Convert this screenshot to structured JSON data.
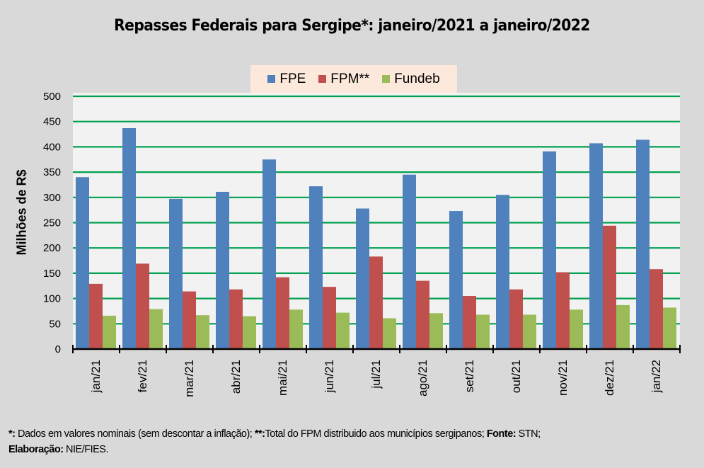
{
  "chart_data": {
    "type": "bar",
    "title": "Repasses Federais para Sergipe*: janeiro/2021 a janeiro/2022",
    "xlabel": "",
    "ylabel": "Milhões de R$",
    "ylim": [
      0,
      500
    ],
    "yticks": [
      0,
      50,
      100,
      150,
      200,
      250,
      300,
      350,
      400,
      450,
      500
    ],
    "grid": true,
    "legend_position": "top-center",
    "categories": [
      "jan/21",
      "fev/21",
      "mar/21",
      "abr/21",
      "mai/21",
      "jun/21",
      "jul/21",
      "ago/21",
      "set/21",
      "out/21",
      "nov/21",
      "dez/21",
      "jan/22"
    ],
    "series": [
      {
        "name": "FPE",
        "color": "#4f81bd",
        "values": [
          340,
          437,
          297,
          311,
          375,
          322,
          278,
          345,
          273,
          305,
          391,
          407,
          414
        ]
      },
      {
        "name": "FPM**",
        "color": "#c0504d",
        "values": [
          129,
          169,
          114,
          118,
          142,
          123,
          183,
          135,
          105,
          118,
          152,
          244,
          158
        ]
      },
      {
        "name": "Fundeb",
        "color": "#9bbb59",
        "values": [
          66,
          79,
          67,
          65,
          78,
          72,
          61,
          71,
          68,
          68,
          78,
          87,
          82
        ]
      }
    ]
  },
  "footnote": {
    "star_label": "*:",
    "star_text": " Dados em valores nominais (sem descontar a inflação); ",
    "dstar_label": "**:",
    "dstar_text": "Total  do FPM distribuido aos municípios sergipanos; ",
    "source_label": "Fonte:",
    "source_text": " STN;",
    "author_label": "Elaboração:",
    "author_text": " NIE/FIES."
  },
  "colors": {
    "background": "#d9d9d9",
    "plot_background": "#f2f2f2",
    "gridline": "#00a050",
    "legend_background": "#fce9dc"
  }
}
